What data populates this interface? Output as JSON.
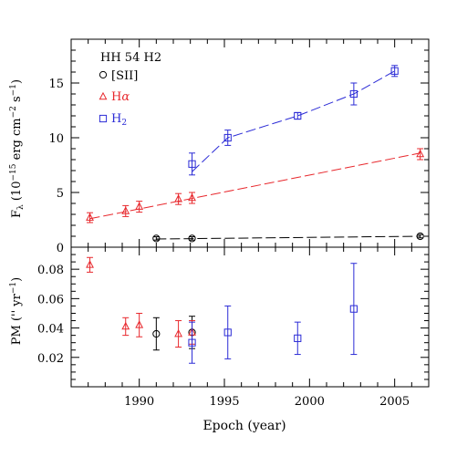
{
  "chart_data": [
    {
      "type": "scatter",
      "panel": "top",
      "title": "HH 54 H2",
      "xlabel": "",
      "ylabel_main": "F",
      "ylabel_sub": "λ",
      "ylabel_rest": " (10",
      "ylabel_exp1": "−15",
      "ylabel_mid": " erg cm",
      "ylabel_exp2": "−2",
      "ylabel_mid2": " s",
      "ylabel_exp3": "−1",
      "ylabel_end": ")",
      "xlim": [
        1986,
        2007
      ],
      "ylim": [
        0,
        19
      ],
      "y_ticks": [
        0,
        5,
        10,
        15
      ],
      "legend_position": "top-left",
      "series": [
        {
          "name": "[SII]",
          "marker": "circle",
          "color": "#000000",
          "points": [
            {
              "x": 1991.0,
              "y": 0.8,
              "err": 0.15
            },
            {
              "x": 1993.1,
              "y": 0.8,
              "err": 0.15
            },
            {
              "x": 2006.5,
              "y": 1.0,
              "err": 0.15
            }
          ],
          "fit": {
            "x": [
              1991.0,
              2006.5
            ],
            "y": [
              0.75,
              1.0
            ]
          }
        },
        {
          "name": "Hα",
          "name_main": "H",
          "name_greek": "α",
          "marker": "triangle",
          "color": "#e8282d",
          "points": [
            {
              "x": 1987.1,
              "y": 2.7,
              "err": 0.45
            },
            {
              "x": 1989.2,
              "y": 3.3,
              "err": 0.5
            },
            {
              "x": 1990.0,
              "y": 3.7,
              "err": 0.5
            },
            {
              "x": 1992.3,
              "y": 4.4,
              "err": 0.5
            },
            {
              "x": 1993.1,
              "y": 4.5,
              "err": 0.5
            },
            {
              "x": 2006.5,
              "y": 8.5,
              "err": 0.5
            }
          ],
          "fit": {
            "x": [
              1987.1,
              2006.5
            ],
            "y": [
              2.6,
              8.6
            ]
          }
        },
        {
          "name": "H2",
          "name_main": "H",
          "name_sub": "2",
          "marker": "square",
          "color": "#2b2bd6",
          "points": [
            {
              "x": 1993.1,
              "y": 7.6,
              "err": 1.0
            },
            {
              "x": 1995.2,
              "y": 10.0,
              "err": 0.7
            },
            {
              "x": 1999.3,
              "y": 12.0,
              "err": 0.3
            },
            {
              "x": 2002.6,
              "y": 14.0,
              "err": 1.0
            },
            {
              "x": 2005.0,
              "y": 16.1,
              "err": 0.5
            }
          ],
          "fit": {
            "x": [
              1993.1,
              1995.2,
              1999.3,
              2002.6,
              2005.0
            ],
            "y": [
              6.9,
              10.0,
              12.0,
              14.0,
              16.1
            ]
          }
        }
      ]
    },
    {
      "type": "scatter",
      "panel": "bottom",
      "xlabel": "Epoch (year)",
      "ylabel": "PM ('' yr",
      "ylabel_exp": "−1",
      "ylabel_end": ")",
      "xlim": [
        1986,
        2007
      ],
      "ylim": [
        0,
        0.095
      ],
      "x_ticks": [
        1990,
        1995,
        2000,
        2005
      ],
      "y_ticks": [
        0.02,
        0.04,
        0.06,
        0.08
      ],
      "series": [
        {
          "name": "[SII]",
          "marker": "circle",
          "color": "#000000",
          "points": [
            {
              "x": 1991.0,
              "y": 0.036,
              "err": 0.011
            },
            {
              "x": 1993.1,
              "y": 0.037,
              "err": 0.011
            }
          ]
        },
        {
          "name": "Hα",
          "marker": "triangle",
          "color": "#e8282d",
          "points": [
            {
              "x": 1987.1,
              "y": 0.083,
              "err": 0.005
            },
            {
              "x": 1989.2,
              "y": 0.041,
              "err": 0.006
            },
            {
              "x": 1990.0,
              "y": 0.042,
              "err": 0.008
            },
            {
              "x": 1992.3,
              "y": 0.036,
              "err": 0.009
            },
            {
              "x": 1993.1,
              "y": 0.037,
              "err": 0.008
            }
          ]
        },
        {
          "name": "H2",
          "marker": "square",
          "color": "#2b2bd6",
          "points": [
            {
              "x": 1993.1,
              "y": 0.03,
              "err": 0.014
            },
            {
              "x": 1995.2,
              "y": 0.037,
              "err": 0.018
            },
            {
              "x": 1999.3,
              "y": 0.033,
              "err": 0.011
            },
            {
              "x": 2002.6,
              "y": 0.053,
              "err": 0.031
            }
          ]
        }
      ]
    }
  ]
}
